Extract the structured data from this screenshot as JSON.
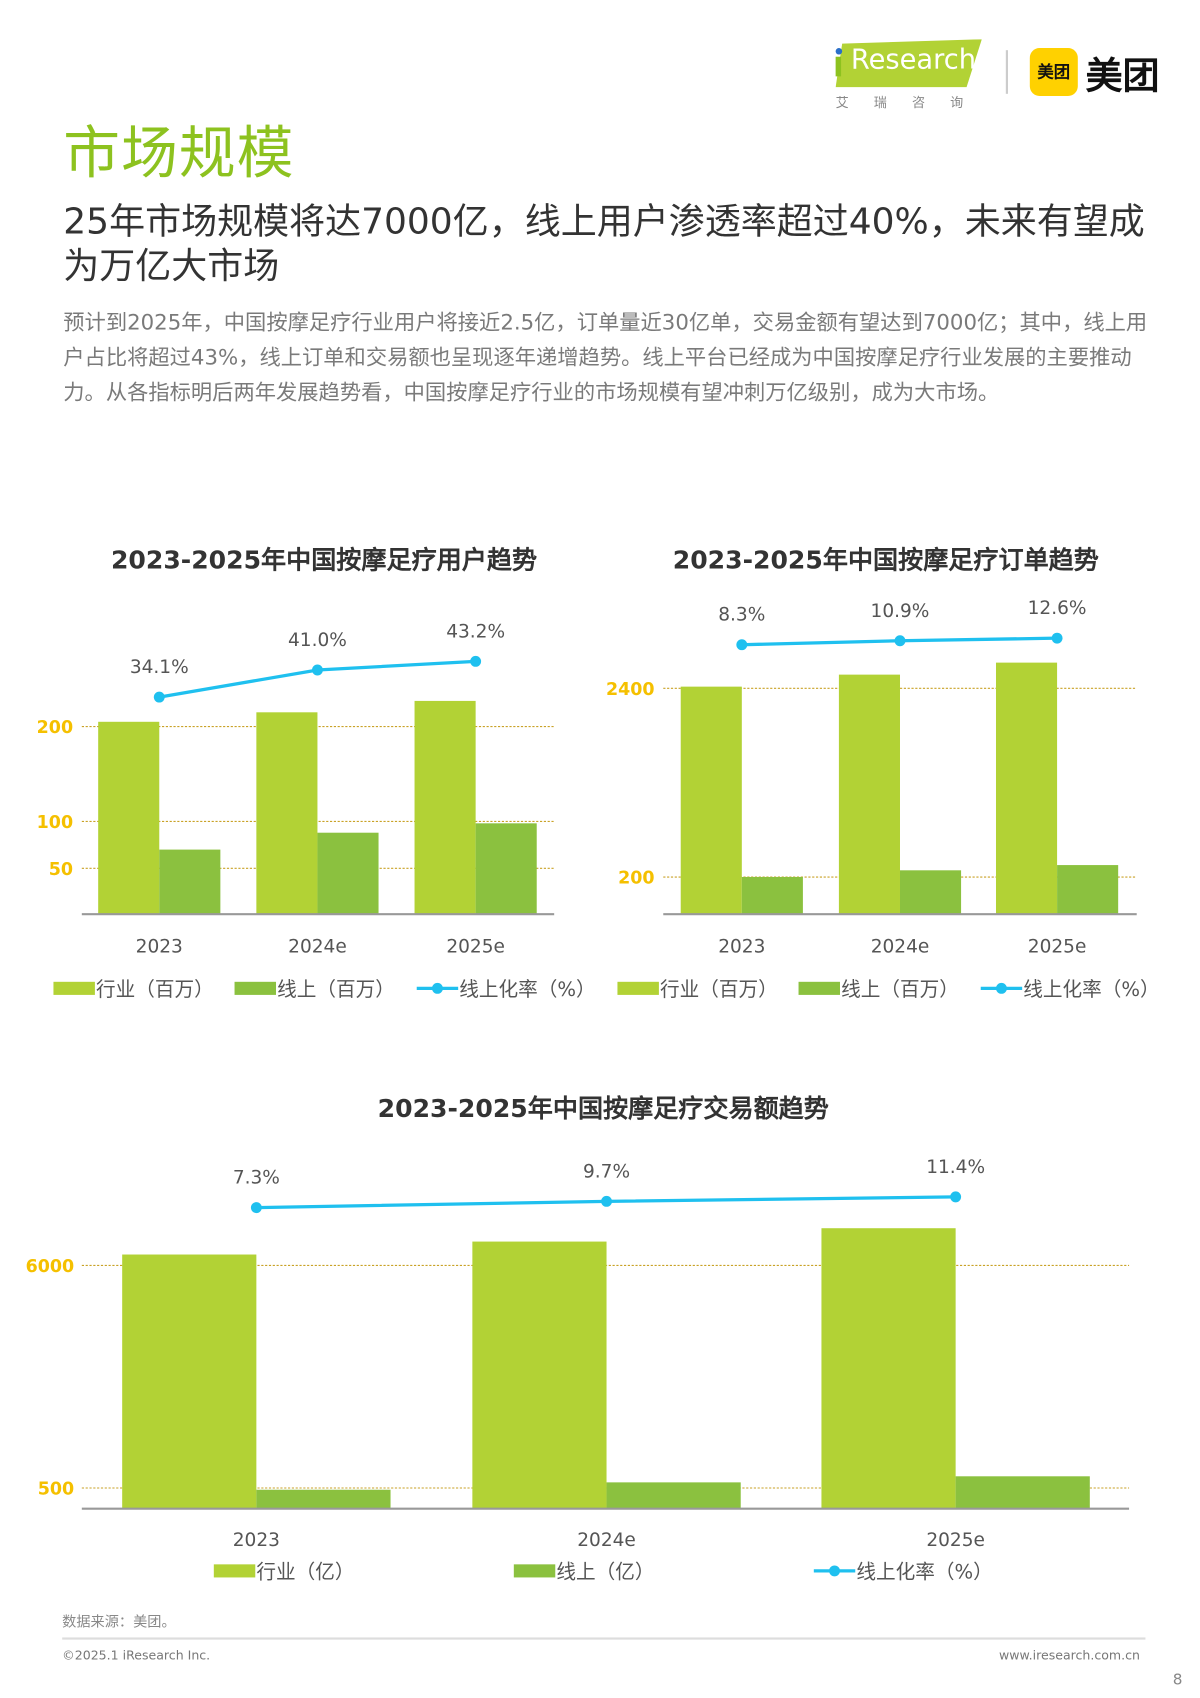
{
  "header": {
    "iresearch_logo": "iResearch",
    "iresearch_cn": "艾瑞咨询",
    "meituan_logo_icon": "美团",
    "meituan_logo_text": "美团"
  },
  "title": "市场规模",
  "subtitle": "25年市场规模将达7000亿，线上用户渗透率超过40%，未来有望成为万亿大市场",
  "body": "预计到2025年，中国按摩足疗行业用户将接近2.5亿，订单量近30亿单，交易金额有望达到7000亿；其中，线上用户占比将超过43%，线上订单和交易额也呈现逐年递增趋势。线上平台已经成为中国按摩足疗行业发展的主要推动力。从各指标明后两年发展趋势看，中国按摩足疗行业的市场规模有望冲刺万亿级别，成为大市场。",
  "colors": {
    "industry": "#b2d235",
    "online": "#8bc13f",
    "rate": "#1fc0ef",
    "tick": "#f5c000",
    "grid": "#c9a227",
    "title": "#8dc21f"
  },
  "chart_data": [
    {
      "type": "bar",
      "title": "2023-2025年中国按摩足疗用户趋势",
      "categories": [
        "2023",
        "2024e",
        "2025e"
      ],
      "yticks": [
        "200",
        "100",
        "50"
      ],
      "series": [
        {
          "name": "行业（百万）",
          "type": "bar",
          "values": [
            205,
            215,
            227
          ]
        },
        {
          "name": "线上（百万）",
          "type": "bar",
          "values": [
            70,
            88,
            98
          ]
        },
        {
          "name": "线上化率（%）",
          "type": "line",
          "values": [
            34.1,
            41.0,
            43.2
          ],
          "labels": [
            "34.1%",
            "41.0%",
            "43.2%"
          ]
        }
      ],
      "grid": true,
      "legend": "bottom"
    },
    {
      "type": "bar",
      "title": "2023-2025年中国按摩足疗订单趋势",
      "categories": [
        "2023",
        "2024e",
        "2025e"
      ],
      "yticks": [
        "2400",
        "200"
      ],
      "series": [
        {
          "name": "行业（百万）",
          "type": "bar",
          "values": [
            2420,
            2560,
            2700
          ]
        },
        {
          "name": "线上（百万）",
          "type": "bar",
          "values": [
            201,
            279,
            340
          ]
        },
        {
          "name": "线上化率（%）",
          "type": "line",
          "values": [
            8.3,
            10.9,
            12.6
          ],
          "labels": [
            "8.3%",
            "10.9%",
            "12.6%"
          ]
        }
      ],
      "grid": true,
      "legend": "bottom"
    },
    {
      "type": "bar",
      "title": "2023-2025年中国按摩足疗交易额趋势",
      "categories": [
        "2023",
        "2024e",
        "2025e"
      ],
      "yticks": [
        "6000",
        "500"
      ],
      "series": [
        {
          "name": "行业（亿）",
          "type": "bar",
          "values": [
            6270,
            6590,
            6920
          ]
        },
        {
          "name": "线上（亿）",
          "type": "bar",
          "values": [
            458,
            639,
            789
          ]
        },
        {
          "name": "线上化率（%）",
          "type": "line",
          "values": [
            7.3,
            9.7,
            11.4
          ],
          "labels": [
            "7.3%",
            "9.7%",
            "11.4%"
          ]
        }
      ],
      "grid": true,
      "legend": "bottom"
    }
  ],
  "footer": {
    "source": "数据来源：美团。",
    "copyright": "©2025.1 iResearch Inc.",
    "url": "www.iresearch.com.cn",
    "page_number": "8"
  }
}
